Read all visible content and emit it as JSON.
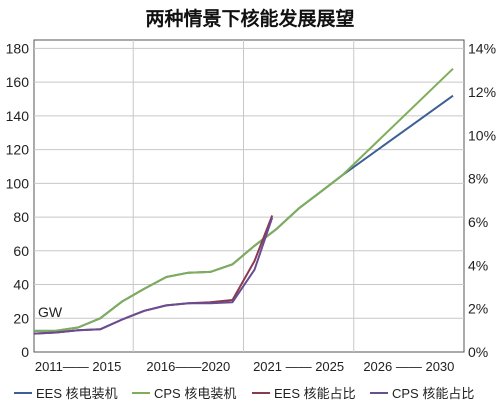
{
  "chart_data": {
    "type": "line",
    "title": "两种情景下核能发展展望",
    "unit_label": "GW",
    "x_groups": [
      "2011—— 2015",
      "2016——2020",
      "2021 —— 2025",
      "2026 —— 2030"
    ],
    "x_range": [
      2011,
      2030.5
    ],
    "y_left": {
      "ticks": [
        0,
        20,
        40,
        60,
        80,
        100,
        120,
        140,
        160,
        180
      ],
      "range": [
        0,
        185
      ]
    },
    "y_right": {
      "ticks": [
        "0%",
        "2%",
        "4%",
        "6%",
        "8%",
        "10%",
        "12%",
        "14%"
      ],
      "tick_values": [
        0,
        2,
        4,
        6,
        8,
        10,
        12,
        14
      ],
      "range": [
        0,
        14.4
      ]
    },
    "grid": true,
    "legend_position": "bottom",
    "series": [
      {
        "name": "EES 核电装机",
        "axis": "left",
        "color": "#3d5f96",
        "x": [
          2011,
          2012,
          2013,
          2014,
          2015,
          2016,
          2017,
          2018,
          2019,
          2020,
          2021,
          2022,
          2023,
          2024,
          2025,
          2030
        ],
        "y": [
          12.5,
          12.6,
          14.5,
          20,
          30,
          37.5,
          44.5,
          47,
          47.5,
          52,
          63,
          73,
          85,
          95,
          105,
          152
        ]
      },
      {
        "name": "CPS 核电装机",
        "axis": "left",
        "color": "#7fae5a",
        "x": [
          2011,
          2012,
          2013,
          2014,
          2015,
          2016,
          2017,
          2018,
          2019,
          2020,
          2021,
          2022,
          2023,
          2024,
          2025,
          2030
        ],
        "y": [
          12.5,
          12.6,
          14.5,
          20,
          30,
          37.5,
          44.5,
          47,
          47.5,
          52,
          63,
          73,
          85,
          95,
          105,
          168
        ]
      },
      {
        "name": "EES 核能占比",
        "axis": "right",
        "color": "#8a3a4e",
        "x": [
          2011,
          2012,
          2013,
          2014,
          2015,
          2016,
          2017,
          2018,
          2019,
          2020,
          2021,
          2021.8
        ],
        "y": [
          0.85,
          0.9,
          1.0,
          1.05,
          1.5,
          1.9,
          2.15,
          2.25,
          2.3,
          2.4,
          4.2,
          6.3
        ]
      },
      {
        "name": "CPS 核能占比",
        "axis": "right",
        "color": "#6a4c92",
        "x": [
          2011,
          2012,
          2013,
          2014,
          2015,
          2016,
          2017,
          2018,
          2019,
          2020,
          2021,
          2021.8
        ],
        "y": [
          0.85,
          0.9,
          1.0,
          1.05,
          1.5,
          1.9,
          2.15,
          2.25,
          2.25,
          2.3,
          3.8,
          6.2
        ]
      }
    ]
  }
}
